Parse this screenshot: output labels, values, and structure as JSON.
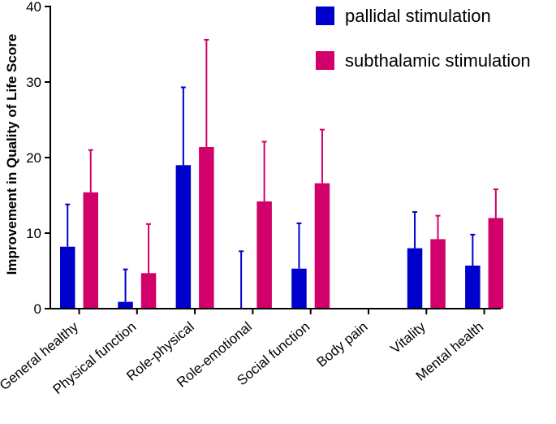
{
  "chart_data": {
    "type": "bar",
    "title": "",
    "xlabel": "",
    "ylabel": "Improvement in Quality of Life Score",
    "ylim": [
      0,
      40
    ],
    "yticks": [
      0,
      10,
      20,
      30,
      40
    ],
    "grid": false,
    "legend_position": "top-right",
    "categories": [
      "General healthy",
      "Physical function",
      "Role-physical",
      "Role-emotional",
      "Social function",
      "Body pain",
      "Vitality",
      "Mental health"
    ],
    "series": [
      {
        "name": "pallidal stimulation",
        "color": "#0000cc",
        "values": [
          8.2,
          0.9,
          19.0,
          0,
          5.3,
          0,
          8.0,
          5.7
        ],
        "error_upper": [
          13.8,
          5.2,
          29.3,
          7.6,
          11.3,
          0,
          12.8,
          9.8
        ]
      },
      {
        "name": "subthalamic stimulation",
        "color": "#d1006a",
        "values": [
          15.4,
          4.7,
          21.4,
          14.2,
          16.6,
          0,
          9.2,
          12.0
        ],
        "error_upper": [
          21.0,
          11.2,
          35.6,
          22.1,
          23.7,
          0,
          12.3,
          15.8
        ]
      }
    ]
  }
}
